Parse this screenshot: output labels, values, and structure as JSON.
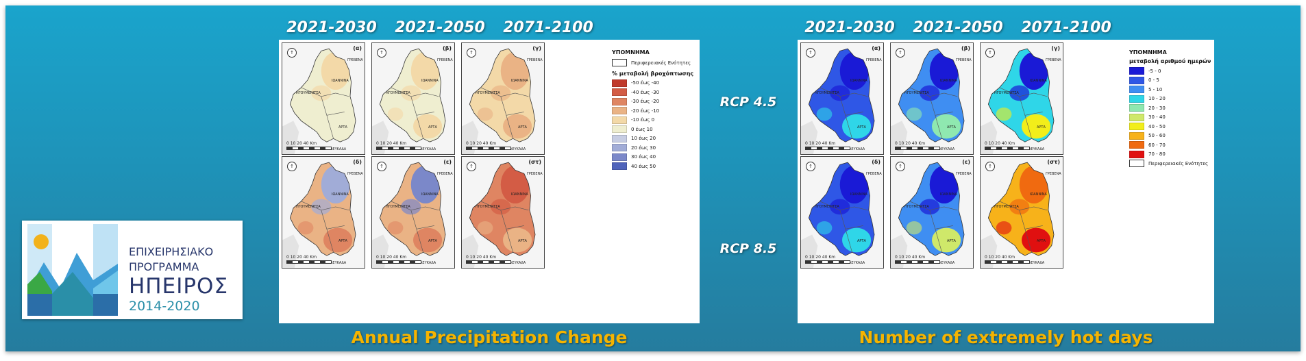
{
  "periods": [
    "2021-2030",
    "2021-2050",
    "2071-2100"
  ],
  "scenarios": [
    "RCP 4.5",
    "RCP 8.5"
  ],
  "captions": {
    "precip": "Annual Precipitation Change",
    "hot": "Number of extremely hot days"
  },
  "logo": {
    "line1": "ΕΠΙΧΕΙΡΗΣΙΑΚΟ",
    "line2": "ΠΡΟΓΡΑΜΜΑ",
    "line3": "ΗΠΕΙΡΟΣ",
    "years": "2014-2020"
  },
  "map_labels": {
    "grevena": "ΓΡΕΒΕΝΑ",
    "ioannina": "ΙΩΑΝΝΙΝΑ",
    "igoumenitsa": "ΗΓΟΥΜΕΝΙΤΣΑ",
    "arta": "ΑΡΤΑ",
    "lefkada": "ΛΕΥΚΑΔΑ",
    "scale": "0  10 20       40 Km"
  },
  "panel_letters": [
    "(α)",
    "(β)",
    "(γ)",
    "(δ)",
    "(ε)",
    "(στ)"
  ],
  "precip_legend": {
    "title": "ΥΠΟΜΝΗΜΑ",
    "boundary_label": "Περιφερειακές Ενότητες",
    "subtitle": "% μεταβολή βροχόπτωσης",
    "items": [
      {
        "label": "-50 έως -40",
        "color": "#c0392b"
      },
      {
        "label": "-40 έως -30",
        "color": "#d35c45"
      },
      {
        "label": "-30 έως -20",
        "color": "#df8562"
      },
      {
        "label": "-20 έως -10",
        "color": "#eab385"
      },
      {
        "label": "-10 έως 0",
        "color": "#f3d9a8"
      },
      {
        "label": "0 έως 10",
        "color": "#efeed0"
      },
      {
        "label": "10 έως 20",
        "color": "#c7cde3"
      },
      {
        "label": "20 έως 30",
        "color": "#a1acd7"
      },
      {
        "label": "30 έως 40",
        "color": "#7b88c9"
      },
      {
        "label": "40 έως 50",
        "color": "#4f63bb"
      }
    ]
  },
  "hot_legend": {
    "title": "ΥΠΟΜΝΗΜΑ",
    "subtitle": "μεταβολή αριθμού ημερών",
    "items": [
      {
        "label": "-5 - 0",
        "color": "#1a1ad6"
      },
      {
        "label": "0 - 5",
        "color": "#2f57e6"
      },
      {
        "label": "5 - 10",
        "color": "#3f8ef2"
      },
      {
        "label": "10 - 20",
        "color": "#2fd6e8"
      },
      {
        "label": "20 - 30",
        "color": "#8fe8b0"
      },
      {
        "label": "30 - 40",
        "color": "#cfe86a"
      },
      {
        "label": "40 - 50",
        "color": "#f2ee1a"
      },
      {
        "label": "50 - 60",
        "color": "#f7b21a"
      },
      {
        "label": "60 - 70",
        "color": "#f06a10"
      },
      {
        "label": "70 - 80",
        "color": "#e01010"
      }
    ],
    "boundary_label": "Περιφερειακές Ενότητες"
  },
  "map_fills": {
    "precip": [
      {
        "base": "#efeed0",
        "blob1": "#f3d9a8",
        "blob2": "#efeed0"
      },
      {
        "base": "#efeed0",
        "blob1": "#f3d9a8",
        "blob2": "#f3d9a8"
      },
      {
        "base": "#f3d9a8",
        "blob1": "#eab385",
        "blob2": "#eab385"
      },
      {
        "base": "#eab385",
        "blob1": "#a1acd7",
        "blob2": "#df8562"
      },
      {
        "base": "#eab385",
        "blob1": "#7b88c9",
        "blob2": "#df8562"
      },
      {
        "base": "#df8562",
        "blob1": "#d35c45",
        "blob2": "#eab385"
      }
    ],
    "hot": [
      {
        "base": "#2f57e6",
        "blob1": "#1a1ad6",
        "blob2": "#2fd6e8"
      },
      {
        "base": "#3f8ef2",
        "blob1": "#1a1ad6",
        "blob2": "#8fe8b0"
      },
      {
        "base": "#2fd6e8",
        "blob1": "#1a1ad6",
        "blob2": "#f2ee1a"
      },
      {
        "base": "#2f57e6",
        "blob1": "#1a1ad6",
        "blob2": "#2fd6e8"
      },
      {
        "base": "#3f8ef2",
        "blob1": "#1a1ad6",
        "blob2": "#cfe86a"
      },
      {
        "base": "#f7b21a",
        "blob1": "#f06a10",
        "blob2": "#e01010"
      }
    ]
  }
}
